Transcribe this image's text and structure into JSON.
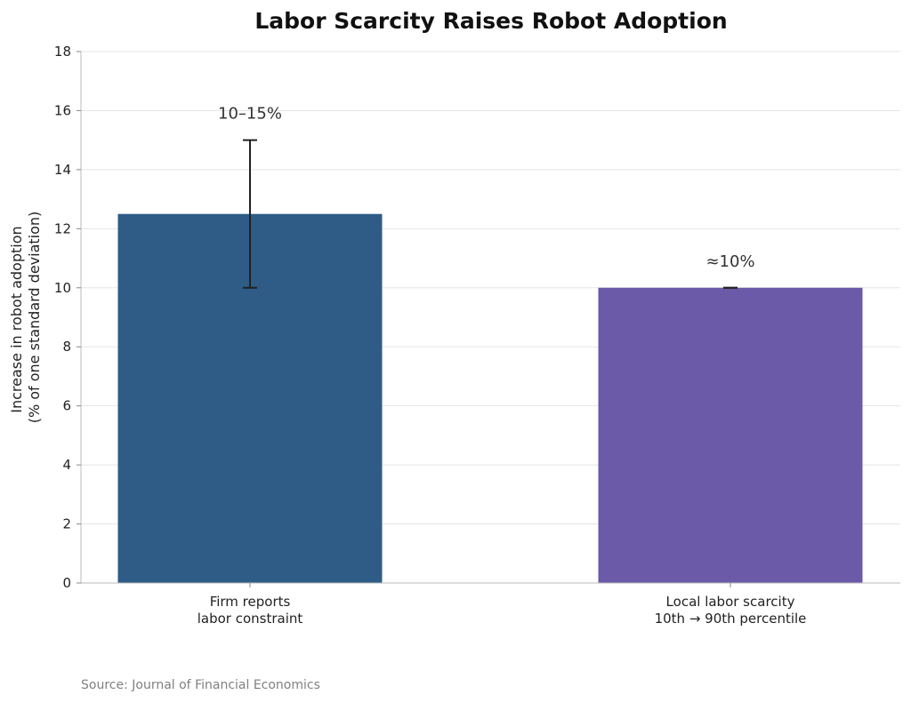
{
  "chart_data": {
    "type": "bar",
    "title": "Labor Scarcity Raises Robot Adoption",
    "ylabel": [
      "Increase in robot adoption",
      "(% of one standard deviation)"
    ],
    "xlabel": "",
    "ylim": [
      0,
      18
    ],
    "yticks": [
      "0",
      "2",
      "4",
      "6",
      "8",
      "10",
      "12",
      "14",
      "16",
      "18"
    ],
    "grid": "horizontal",
    "categories": [
      [
        "Firm reports",
        "labor constraint"
      ],
      [
        "Local labor scarcity",
        "10th → 90th percentile"
      ]
    ],
    "values": [
      12.5,
      10
    ],
    "error_ranges": [
      [
        10,
        15
      ],
      [
        10,
        10
      ]
    ],
    "data_labels": [
      "10–15%",
      "≈10%"
    ],
    "colors": [
      "#2e5c87",
      "#6a5aa8"
    ],
    "source": "Source: Journal of Financial Economics"
  }
}
